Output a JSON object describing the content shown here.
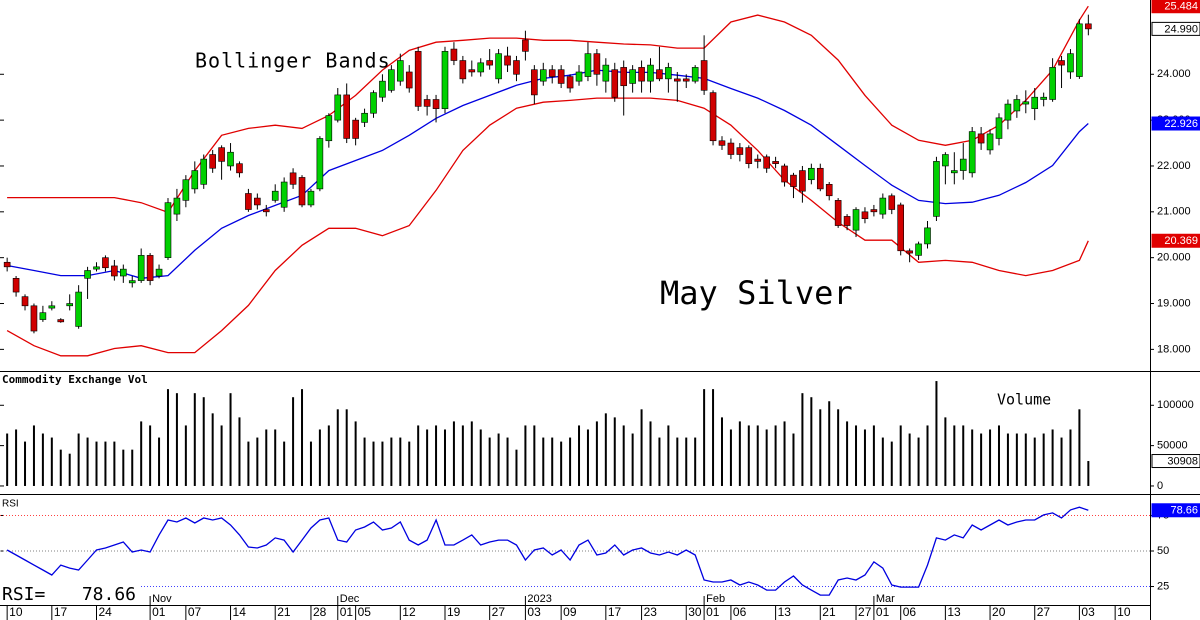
{
  "chart_data": [
    {
      "type": "candlestick",
      "title": "May Silver",
      "annotation": "Bollinger Bands",
      "xlim": [
        -0.8,
        127.9
      ],
      "ylim": [
        17.55,
        25.62
      ],
      "yticks": [
        {
          "value": 18,
          "label": "18.000"
        },
        {
          "value": 19,
          "label": "19.000"
        },
        {
          "value": 20,
          "label": "20.000"
        },
        {
          "value": 21,
          "label": "21.000"
        },
        {
          "value": 22,
          "label": "22.000"
        },
        {
          "value": 23,
          "label": "23.000"
        },
        {
          "value": 24,
          "label": "24.000"
        }
      ],
      "up_color": "#00d000",
      "down_color": "#d00000",
      "ohlc": {
        "open": [
          19.9,
          19.55,
          19.15,
          18.95,
          18.65,
          18.9,
          18.65,
          18.95,
          18.5,
          19.55,
          19.75,
          20.0,
          19.82,
          19.6,
          19.45,
          19.5,
          20.05,
          19.6,
          20.0,
          20.95,
          21.25,
          21.5,
          21.6,
          22.25,
          22.4,
          22.0,
          22.05,
          21.4,
          21.3,
          21.05,
          21.25,
          21.1,
          21.85,
          21.75,
          21.15,
          21.5,
          22.55,
          23.0,
          23.55,
          23.0,
          22.95,
          23.15,
          23.5,
          23.65,
          23.85,
          24.05,
          24.5,
          23.45,
          23.45,
          23.25,
          24.55,
          24.3,
          24.1,
          24.05,
          24.3,
          23.9,
          24.4,
          24.3,
          24.75,
          24.1,
          23.85,
          24.1,
          24.1,
          23.95,
          23.85,
          23.95,
          24.45,
          23.85,
          24.1,
          24.15,
          23.8,
          24.15,
          23.85,
          24.1,
          23.9,
          23.9,
          23.9,
          23.85,
          24.3,
          23.6,
          22.55,
          22.5,
          22.4,
          22.4,
          22.15,
          22.2,
          22.1,
          22.0,
          21.8,
          21.9,
          21.7,
          21.95,
          21.6,
          21.25,
          20.9,
          20.6,
          21.0,
          21.05,
          20.95,
          21.35,
          21.15,
          20.15,
          20.05,
          20.3,
          20.9,
          22.0,
          21.85,
          21.9,
          21.85,
          22.7,
          22.35,
          22.6,
          23.0,
          23.2,
          23.35,
          23.25,
          23.45,
          23.45,
          24.3,
          24.05,
          23.95,
          25.1
        ],
        "high": [
          20.0,
          19.6,
          19.2,
          19.0,
          18.95,
          19.05,
          18.68,
          19.2,
          19.4,
          19.8,
          19.9,
          20.05,
          19.95,
          19.85,
          19.6,
          20.2,
          20.1,
          19.85,
          21.3,
          21.5,
          21.8,
          22.1,
          22.25,
          22.35,
          22.45,
          22.5,
          22.1,
          21.5,
          21.4,
          21.15,
          21.6,
          21.75,
          21.95,
          21.8,
          21.5,
          22.65,
          23.15,
          23.7,
          23.8,
          23.05,
          23.25,
          23.65,
          24.0,
          24.2,
          24.45,
          24.2,
          24.6,
          23.55,
          23.55,
          24.6,
          24.7,
          24.4,
          24.3,
          24.35,
          24.55,
          24.55,
          24.6,
          24.4,
          24.95,
          24.2,
          24.25,
          24.2,
          24.2,
          24.0,
          24.2,
          24.7,
          24.55,
          24.35,
          24.25,
          24.3,
          24.2,
          24.3,
          24.35,
          24.6,
          24.25,
          24.05,
          24.0,
          24.2,
          24.85,
          23.65,
          22.65,
          22.6,
          22.5,
          22.45,
          22.25,
          22.25,
          22.2,
          22.05,
          21.85,
          22.0,
          22.05,
          22.05,
          21.65,
          21.3,
          20.95,
          21.1,
          21.1,
          21.15,
          21.4,
          21.4,
          21.2,
          20.2,
          20.35,
          20.8,
          22.2,
          22.3,
          22.3,
          22.5,
          22.85,
          22.85,
          22.8,
          23.15,
          23.45,
          23.55,
          23.65,
          23.7,
          23.6,
          24.35,
          24.4,
          24.55,
          25.2,
          25.3
        ],
        "low": [
          19.7,
          19.15,
          18.85,
          18.35,
          18.6,
          18.85,
          18.58,
          18.85,
          18.45,
          19.1,
          19.7,
          19.7,
          19.5,
          19.45,
          19.35,
          19.45,
          19.4,
          19.55,
          19.95,
          20.8,
          21.1,
          21.4,
          21.5,
          21.85,
          21.7,
          21.9,
          21.75,
          21.0,
          21.05,
          20.9,
          21.2,
          21.0,
          21.5,
          21.1,
          21.1,
          21.45,
          22.4,
          22.95,
          22.5,
          22.45,
          22.85,
          23.05,
          23.4,
          23.6,
          23.75,
          23.6,
          23.2,
          23.1,
          22.95,
          23.15,
          24.2,
          23.8,
          23.95,
          23.95,
          24.1,
          23.8,
          24.05,
          23.85,
          24.3,
          23.35,
          23.75,
          23.8,
          23.7,
          23.6,
          23.75,
          23.85,
          23.75,
          23.6,
          23.4,
          23.1,
          23.6,
          23.6,
          23.6,
          23.85,
          23.6,
          23.4,
          23.7,
          23.8,
          23.55,
          22.45,
          22.35,
          22.15,
          22.1,
          21.95,
          21.95,
          21.85,
          21.95,
          21.55,
          21.3,
          21.2,
          21.6,
          21.45,
          21.25,
          20.65,
          20.6,
          20.45,
          20.75,
          20.9,
          20.85,
          20.95,
          20.05,
          19.9,
          19.95,
          20.2,
          20.8,
          21.6,
          21.6,
          21.7,
          21.75,
          22.35,
          22.25,
          22.45,
          22.8,
          23.05,
          23.15,
          23.0,
          23.3,
          23.4,
          23.7,
          23.9,
          23.9,
          24.85
        ],
        "close": [
          19.8,
          19.25,
          18.95,
          18.4,
          18.8,
          18.95,
          18.6,
          19.0,
          19.25,
          19.72,
          19.8,
          19.78,
          19.6,
          19.75,
          19.5,
          20.05,
          19.5,
          19.75,
          21.2,
          21.3,
          21.7,
          21.9,
          22.15,
          21.95,
          22.1,
          22.3,
          21.85,
          21.05,
          21.15,
          21.0,
          21.45,
          21.65,
          21.6,
          21.15,
          21.45,
          22.6,
          23.1,
          23.55,
          22.6,
          22.6,
          23.15,
          23.6,
          23.85,
          24.1,
          24.3,
          23.7,
          23.3,
          23.3,
          23.25,
          24.5,
          24.3,
          23.9,
          24.05,
          24.25,
          24.2,
          24.45,
          24.2,
          24.0,
          24.5,
          23.55,
          24.1,
          23.95,
          23.8,
          23.7,
          24.05,
          24.45,
          24.0,
          24.2,
          23.5,
          23.75,
          24.1,
          23.85,
          24.2,
          23.9,
          24.15,
          23.85,
          23.85,
          24.15,
          23.65,
          22.55,
          22.45,
          22.25,
          22.25,
          22.05,
          22.1,
          21.95,
          22.05,
          21.65,
          21.55,
          21.45,
          21.95,
          21.5,
          21.35,
          20.7,
          20.7,
          21.05,
          20.85,
          21.0,
          21.3,
          21.05,
          20.15,
          20.1,
          20.3,
          20.65,
          22.1,
          22.25,
          21.9,
          22.15,
          22.75,
          22.5,
          22.7,
          23.05,
          23.35,
          23.45,
          23.4,
          23.5,
          23.5,
          24.15,
          24.2,
          24.45,
          25.1,
          24.99
        ]
      },
      "bands": {
        "x": [
          0,
          3,
          6,
          9,
          12,
          15,
          18,
          21,
          24,
          27,
          30,
          33,
          36,
          39,
          42,
          45,
          48,
          51,
          54,
          57,
          60,
          63,
          66,
          69,
          72,
          75,
          78,
          81,
          84,
          87,
          90,
          93,
          96,
          99,
          102,
          105,
          108,
          111,
          114,
          117,
          120,
          121
        ],
        "upper": [
          21.31,
          21.31,
          21.31,
          21.31,
          21.31,
          21.2,
          20.99,
          21.9,
          22.67,
          22.82,
          22.89,
          22.82,
          23.1,
          23.54,
          24.09,
          24.52,
          24.7,
          24.74,
          24.79,
          24.79,
          24.74,
          24.74,
          24.7,
          24.66,
          24.64,
          24.57,
          24.57,
          25.14,
          25.29,
          25.14,
          24.85,
          24.31,
          23.54,
          22.89,
          22.56,
          22.45,
          22.56,
          22.89,
          23.43,
          24.09,
          25.18,
          25.484
        ],
        "middle": [
          19.83,
          19.72,
          19.61,
          19.61,
          19.72,
          19.55,
          19.61,
          20.16,
          20.64,
          20.92,
          21.14,
          21.36,
          21.9,
          22.12,
          22.34,
          22.67,
          23.04,
          23.32,
          23.54,
          23.76,
          23.91,
          23.98,
          24.09,
          24.04,
          24.04,
          23.98,
          23.91,
          23.69,
          23.48,
          23.21,
          22.89,
          22.45,
          22.01,
          21.58,
          21.25,
          21.18,
          21.21,
          21.36,
          21.64,
          22.01,
          22.75,
          22.926
        ],
        "lower": [
          18.41,
          18.08,
          17.86,
          17.86,
          18.02,
          18.08,
          17.93,
          17.93,
          18.41,
          18.96,
          19.72,
          20.27,
          20.64,
          20.64,
          20.48,
          20.7,
          21.47,
          22.34,
          22.89,
          23.26,
          23.39,
          23.43,
          23.48,
          23.48,
          23.48,
          23.43,
          23.26,
          22.89,
          22.34,
          21.69,
          21.25,
          20.77,
          20.38,
          20.38,
          19.9,
          19.94,
          19.9,
          19.72,
          19.61,
          19.72,
          19.94,
          20.369
        ],
        "upper_color": "#e00000",
        "middle_color": "#0000e0",
        "lower_color": "#e00000"
      },
      "markers": [
        {
          "value": 25.484,
          "color": "#e00000"
        },
        {
          "value": 24.99,
          "label": "24.990",
          "color": "#ffffff"
        },
        {
          "value": 22.926,
          "color": "#0000ff"
        },
        {
          "value": 20.369,
          "color": "#e00000"
        }
      ]
    },
    {
      "type": "bar",
      "title": "Commodity Exchange Vol",
      "annotation": "Volume",
      "xlim": [
        -0.8,
        127.9
      ],
      "ylim": [
        -5000,
        140000
      ],
      "yticks": [
        0,
        50000,
        100000
      ],
      "color": "#000000",
      "values": [
        65000,
        70000,
        55000,
        75000,
        65000,
        60000,
        45000,
        40000,
        65000,
        60000,
        55000,
        55000,
        55000,
        45000,
        45000,
        80000,
        75000,
        60000,
        120000,
        115000,
        75000,
        115000,
        110000,
        90000,
        75000,
        115000,
        85000,
        55000,
        60000,
        70000,
        70000,
        55000,
        110000,
        120000,
        55000,
        70000,
        75000,
        95000,
        95000,
        80000,
        60000,
        55000,
        55000,
        60000,
        60000,
        55000,
        75000,
        70000,
        75000,
        70000,
        80000,
        75000,
        80000,
        70000,
        60000,
        65000,
        60000,
        45000,
        75000,
        75000,
        60000,
        60000,
        55000,
        60000,
        75000,
        70000,
        80000,
        90000,
        85000,
        75000,
        65000,
        95000,
        80000,
        60000,
        75000,
        60000,
        60000,
        60000,
        120000,
        120000,
        85000,
        70000,
        80000,
        75000,
        75000,
        70000,
        75000,
        80000,
        65000,
        115000,
        110000,
        95000,
        105000,
        95000,
        80000,
        75000,
        70000,
        75000,
        60000,
        55000,
        75000,
        65000,
        60000,
        75000,
        130000,
        85000,
        75000,
        75000,
        70000,
        65000,
        70000,
        75000,
        65000,
        65000,
        65000,
        60000,
        65000,
        70000,
        60000,
        70000,
        95000,
        30908
      ],
      "markers": [
        {
          "value": 30908,
          "color": "#ffffff"
        }
      ]
    },
    {
      "type": "line",
      "title": "RSI",
      "readout": "RSI=",
      "xlim": [
        -0.8,
        127.9
      ],
      "ylim": [
        12,
        88
      ],
      "yticks": [
        25,
        50,
        75
      ],
      "grid_colors": [
        "#4040ff",
        "#808080",
        "#ff4040"
      ],
      "color": "#0000e0",
      "values": [
        50.7,
        47.2,
        43.7,
        40.1,
        36.6,
        33.1,
        40.1,
        38.0,
        36.6,
        43.7,
        50.7,
        52.1,
        54.2,
        56.3,
        49.3,
        50.7,
        49.3,
        61.3,
        71.8,
        70.4,
        73.2,
        69.7,
        73.2,
        71.8,
        73.2,
        68.3,
        61.3,
        52.8,
        52.1,
        54.2,
        59.2,
        57.7,
        49.3,
        57.7,
        66.2,
        71.8,
        73.2,
        57.7,
        56.3,
        64.8,
        66.9,
        70.4,
        64.8,
        66.2,
        70.4,
        57.7,
        54.2,
        57.7,
        71.8,
        54.2,
        54.2,
        57.7,
        61.3,
        54.2,
        56.3,
        57.7,
        57.7,
        54.2,
        43.7,
        50.7,
        52.1,
        47.2,
        50.7,
        43.7,
        54.2,
        57.7,
        47.2,
        48.6,
        54.2,
        47.2,
        50.7,
        52.1,
        48.6,
        47.2,
        49.3,
        47.2,
        50.7,
        47.2,
        29.6,
        28.2,
        28.2,
        29.6,
        26.1,
        28.2,
        26.1,
        22.5,
        22.5,
        28.2,
        32.4,
        26.1,
        22.5,
        19.0,
        19.0,
        29.6,
        31.0,
        29.6,
        33.1,
        42.3,
        38.0,
        26.1,
        24.6,
        24.6,
        24.6,
        40.1,
        59.2,
        57.7,
        61.3,
        59.2,
        68.3,
        64.8,
        68.3,
        71.8,
        68.3,
        70.4,
        71.8,
        71.8,
        75.4,
        76.8,
        73.2,
        78.9,
        80.8,
        78.66
      ],
      "markers": [
        {
          "value": 78.66,
          "color": "#0000ff"
        }
      ],
      "xticks": [
        {
          "value": 0,
          "label": "10"
        },
        {
          "value": 5,
          "label": "17"
        },
        {
          "value": 10,
          "label": "24"
        },
        {
          "value": 16,
          "label": "01"
        },
        {
          "value": 20,
          "label": "07"
        },
        {
          "value": 25,
          "label": "14"
        },
        {
          "value": 30,
          "label": "21"
        },
        {
          "value": 34,
          "label": "28"
        },
        {
          "value": 37,
          "label": "01"
        },
        {
          "value": 39,
          "label": "05"
        },
        {
          "value": 44,
          "label": "12"
        },
        {
          "value": 49,
          "label": "19"
        },
        {
          "value": 54,
          "label": "27"
        },
        {
          "value": 58,
          "label": "03"
        },
        {
          "value": 62,
          "label": "09"
        },
        {
          "value": 67,
          "label": "17"
        },
        {
          "value": 71,
          "label": "23"
        },
        {
          "value": 76,
          "label": "30"
        },
        {
          "value": 78,
          "label": "01"
        },
        {
          "value": 81,
          "label": "06"
        },
        {
          "value": 86,
          "label": "13"
        },
        {
          "value": 91,
          "label": "21"
        },
        {
          "value": 95,
          "label": "27"
        },
        {
          "value": 97,
          "label": "01"
        },
        {
          "value": 100,
          "label": "06"
        },
        {
          "value": 105,
          "label": "13"
        },
        {
          "value": 110,
          "label": "20"
        },
        {
          "value": 115,
          "label": "27"
        },
        {
          "value": 120,
          "label": "03"
        },
        {
          "value": 124,
          "label": "10"
        }
      ],
      "month_labels": [
        {
          "value": 16,
          "label": "Nov"
        },
        {
          "value": 37,
          "label": "Dec"
        },
        {
          "value": 58,
          "label": "2023"
        },
        {
          "value": 78,
          "label": "Feb"
        },
        {
          "value": 97,
          "label": "Mar"
        }
      ]
    }
  ]
}
